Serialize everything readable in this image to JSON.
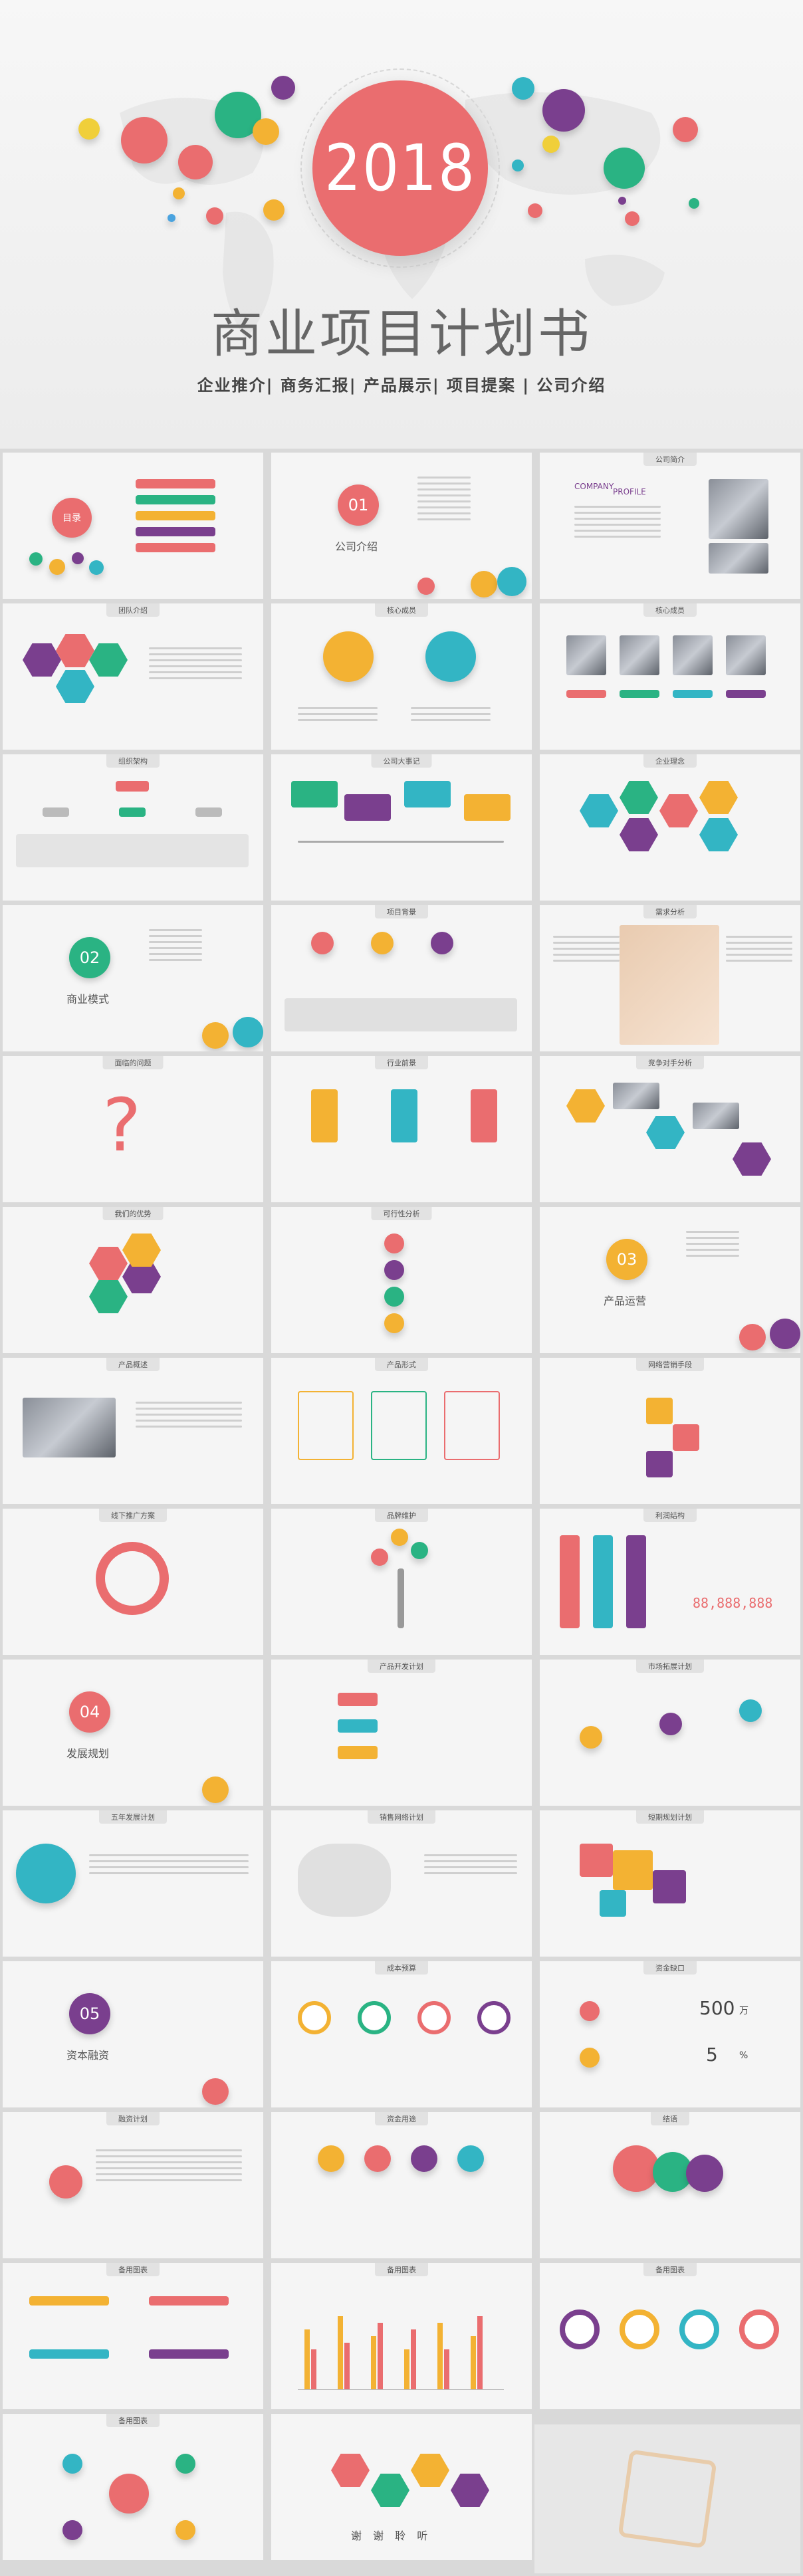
{
  "cover": {
    "year": "2018",
    "title": "商业项目计划书",
    "subtitle": "企业推介| 商务汇报| 产品展示| 项目提案 | 公司介绍"
  },
  "slides": {
    "contents": "目录",
    "company_intro": "公司介绍",
    "profile_title": "公司简介",
    "profile_word1": "COMPANY",
    "profile_word2": "PROFILE",
    "team_intro": "团队介绍",
    "core_members_1": "核心成员",
    "core_members_2": "核心成员",
    "org": "组织架构",
    "events": "公司大事记",
    "culture": "企业理念",
    "business_model": "商业模式",
    "background": "项目背景",
    "demand": "需求分析",
    "problem": "面临的问题",
    "industry": "行业前景",
    "competitor": "竞争对手分析",
    "advantage": "我们的优势",
    "feasibility": "可行性分析",
    "product_ops": "产品运营",
    "product_overview": "产品概述",
    "product_form": "产品形式",
    "network": "网络营销手段",
    "offline": "线下推广方案",
    "brand": "品牌维护",
    "profit": "利润结构",
    "dev_plan": "发展规划",
    "product_dev": "产品开发计划",
    "market_plan": "市场拓展计划",
    "five_year": "五年发展计划",
    "sales_net": "销售网络计划",
    "short_term": "短期规划计划",
    "financing": "资本融资",
    "cost": "成本预算",
    "fund_gap": "资金缺口",
    "fin_plan": "融资计划",
    "use_of_funds": "资金用途",
    "conclusion": "结语",
    "chart1": "备用图表",
    "chart2": "备用图表",
    "chart3": "备用图表",
    "chart4": "备用图表",
    "thanks": "谢 谢 聆 听",
    "fund_num1": "500",
    "fund_unit1": "万",
    "fund_num2": "5",
    "fund_unit2": "%",
    "profit_digits": "88,888,888",
    "num01": "01",
    "num02": "02",
    "num03": "03",
    "num04": "04",
    "num05": "05"
  }
}
